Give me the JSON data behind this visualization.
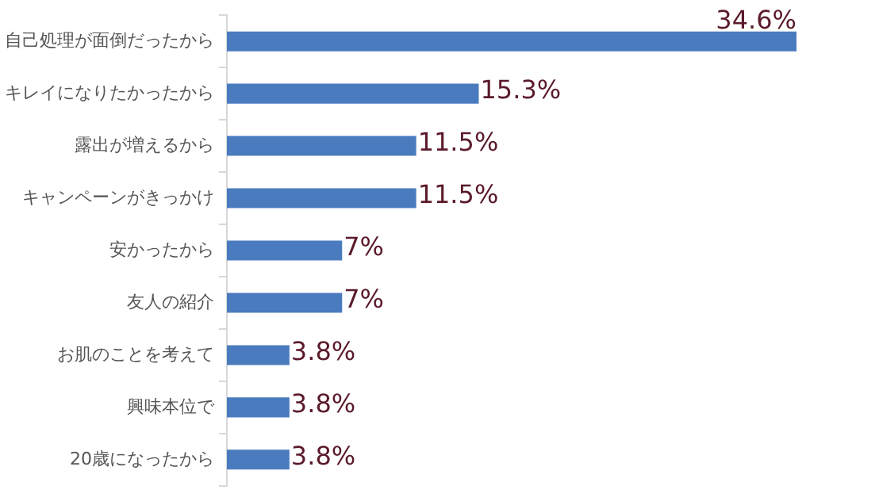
{
  "chart_data": {
    "type": "bar",
    "orientation": "horizontal",
    "categories": [
      "自己処理が面倒だったから",
      "キレイになりたかったから",
      "露出が増えるから",
      "キャンペーンがきっかけ",
      "安かったから",
      "友人の紹介",
      "お肌のことを考えて",
      "興味本位で",
      "20歳になったから"
    ],
    "values": [
      34.6,
      15.3,
      11.5,
      11.5,
      7,
      7,
      3.8,
      3.8,
      3.8
    ],
    "color": "#4a7bbf",
    "value_labels": [
      "34.6%",
      "15.3%",
      "11.5%",
      "11.5%",
      "7%",
      "7%",
      "3.8%",
      "3.8%",
      "3.8%"
    ]
  }
}
